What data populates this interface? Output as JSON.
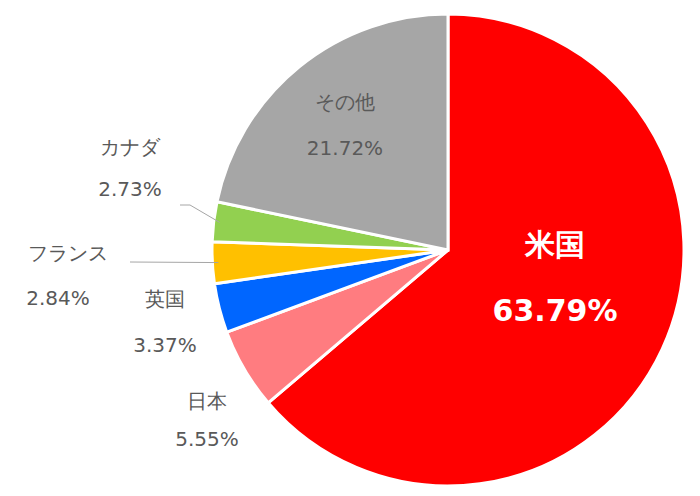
{
  "chart_data": {
    "type": "pie",
    "categories": [
      "米国",
      "日本",
      "英国",
      "フランス",
      "カナダ",
      "その他"
    ],
    "values": [
      63.79,
      5.55,
      3.37,
      2.84,
      2.73,
      21.72
    ],
    "value_labels": [
      "63.79%",
      "5.55%",
      "3.37%",
      "2.84%",
      "2.73%",
      "21.72%"
    ],
    "colors": [
      "#ff0000",
      "#ff7c80",
      "#0066ff",
      "#ffc000",
      "#92d050",
      "#a6a6a6"
    ],
    "data_labels": true
  }
}
